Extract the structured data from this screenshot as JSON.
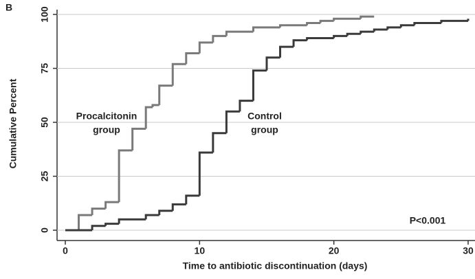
{
  "chart_data": {
    "type": "step",
    "panel": "B",
    "x_label": "Time to antibiotic discontinuation (days)",
    "y_label": "Cumulative Percent",
    "xlim": [
      0,
      30
    ],
    "xticks": [
      0,
      10,
      20,
      30
    ],
    "ylim": [
      0,
      100
    ],
    "yticks": [
      0,
      25,
      50,
      75,
      100
    ],
    "grid": true,
    "series": [
      {
        "name": [
          "Procalcitonin",
          "group"
        ],
        "color": "#7a7a7a",
        "x": [
          0,
          1,
          2,
          3,
          4,
          5,
          6,
          6.5,
          7,
          8,
          9,
          10,
          11,
          12,
          14,
          16,
          18,
          19,
          20,
          22,
          23
        ],
        "values": [
          0,
          7,
          10,
          13,
          37,
          47,
          57,
          58,
          67,
          77,
          82,
          87,
          90,
          92,
          94,
          95,
          96,
          97,
          98,
          99,
          99
        ]
      },
      {
        "name": [
          "Control",
          "group"
        ],
        "color": "#3a3a3a",
        "x": [
          0,
          2,
          3,
          4,
          6,
          7,
          8,
          9,
          10,
          11,
          12,
          13,
          14,
          15,
          16,
          17,
          18,
          20,
          21,
          22,
          23,
          24,
          25,
          26,
          28,
          30
        ],
        "values": [
          0,
          2,
          3,
          5,
          7,
          9,
          12,
          16,
          36,
          45,
          55,
          60,
          74,
          80,
          85,
          88,
          89,
          90,
          91,
          92,
          93,
          94,
          95,
          96,
          97,
          98
        ]
      }
    ],
    "annotation": "P<0.001"
  }
}
